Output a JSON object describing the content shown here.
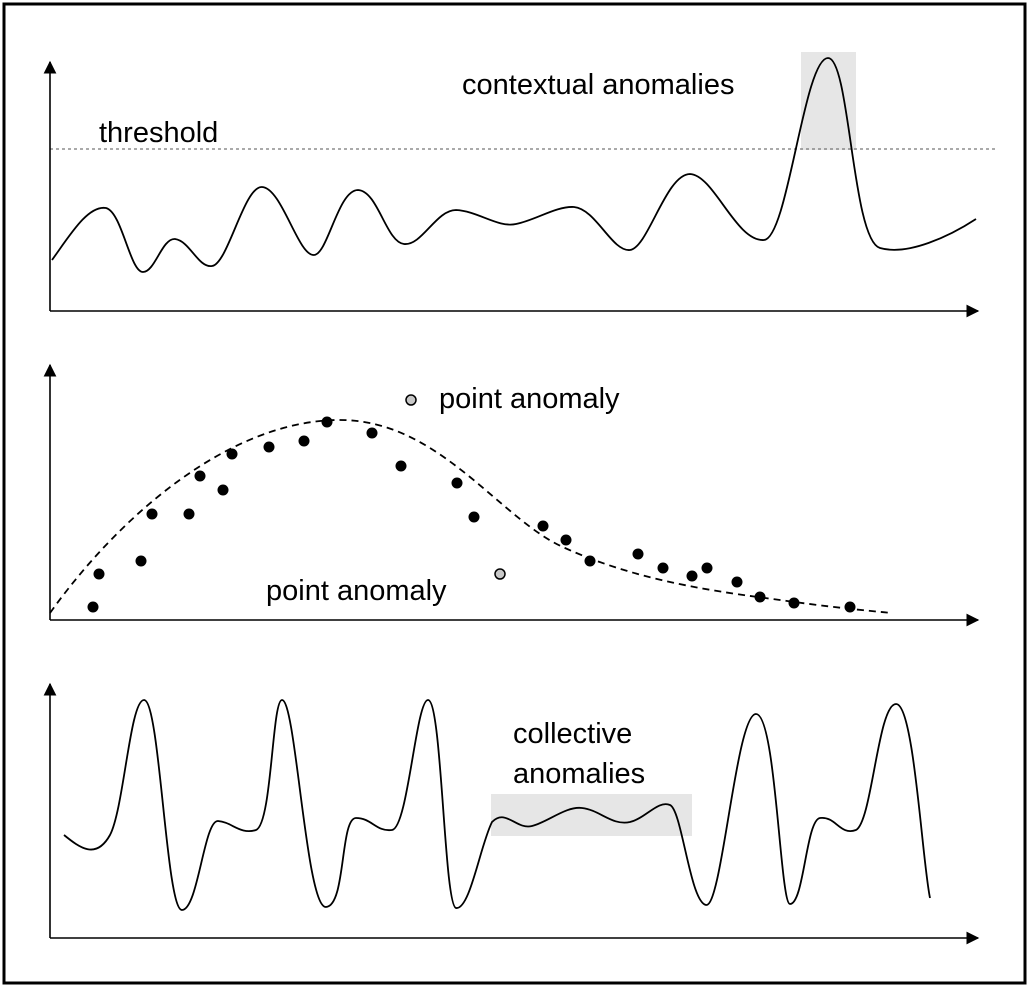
{
  "panels": {
    "contextual": {
      "label": "contextual anomalies",
      "threshold_label": "threshold"
    },
    "point": {
      "label_top": "point anomaly",
      "label_bottom": "point anomaly"
    },
    "collective": {
      "label_line1": "collective",
      "label_line2": "anomalies"
    }
  }
}
